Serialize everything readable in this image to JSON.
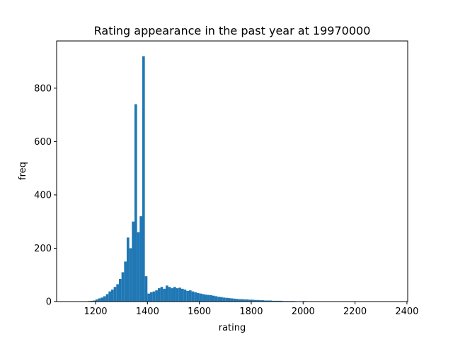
{
  "chart_data": {
    "type": "histogram",
    "title": "Rating appearance in the past year at 19970000",
    "xlabel": "rating",
    "ylabel": "freq",
    "color": "#1f77b4",
    "bins": [
      1110,
      1120,
      1130,
      1140,
      1150,
      1160,
      1170,
      1180,
      1190,
      1200,
      1210,
      1220,
      1230,
      1240,
      1250,
      1260,
      1270,
      1280,
      1290,
      1300,
      1310,
      1320,
      1330,
      1340,
      1350,
      1360,
      1370,
      1380,
      1390,
      1400,
      1410,
      1420,
      1430,
      1440,
      1450,
      1460,
      1470,
      1480,
      1490,
      1500,
      1510,
      1520,
      1530,
      1540,
      1550,
      1560,
      1570,
      1580,
      1590,
      1600,
      1610,
      1620,
      1630,
      1640,
      1650,
      1660,
      1670,
      1680,
      1690,
      1700,
      1710,
      1720,
      1730,
      1740,
      1750,
      1760,
      1770,
      1780,
      1790,
      1800,
      1810,
      1820,
      1830,
      1840,
      1850,
      1860,
      1870,
      1880,
      1890,
      1900,
      1910,
      1920,
      1930,
      1940,
      1950,
      1960,
      1970,
      1980,
      1990,
      2000,
      2010,
      2020,
      2030,
      2040,
      2050,
      2060,
      2070,
      2080,
      2090,
      2100,
      2110,
      2120,
      2130,
      2140,
      2150,
      2160,
      2170,
      2180,
      2190,
      2200,
      2210,
      2220,
      2230,
      2240,
      2250,
      2260,
      2270,
      2280,
      2290,
      2300,
      2310,
      2320,
      2330,
      2340,
      2350
    ],
    "values": [
      0,
      0,
      0,
      1,
      0,
      1,
      2,
      3,
      4,
      8,
      12,
      15,
      20,
      28,
      38,
      45,
      55,
      65,
      85,
      110,
      150,
      240,
      200,
      300,
      740,
      260,
      320,
      920,
      95,
      30,
      35,
      38,
      42,
      50,
      55,
      48,
      60,
      55,
      50,
      55,
      50,
      52,
      48,
      45,
      40,
      42,
      38,
      35,
      32,
      30,
      28,
      26,
      25,
      24,
      22,
      20,
      18,
      17,
      15,
      14,
      13,
      12,
      11,
      10,
      9,
      9,
      8,
      8,
      7,
      7,
      6,
      6,
      5,
      5,
      4,
      4,
      4,
      3,
      3,
      3,
      3,
      2,
      2,
      2,
      2,
      2,
      1,
      1,
      1,
      2,
      1,
      1,
      1,
      1,
      1,
      1,
      1,
      0,
      1,
      1,
      0,
      1,
      1,
      0,
      0,
      1,
      0,
      0,
      0,
      0,
      0,
      0,
      0,
      0,
      0,
      0,
      0,
      0,
      0,
      0,
      0,
      0,
      1,
      0
    ],
    "xlim": [
      1050,
      2403
    ],
    "ylim": [
      0,
      977
    ],
    "xticks": [
      1200,
      1400,
      1600,
      1800,
      2000,
      2200,
      2400
    ],
    "yticks": [
      0,
      200,
      400,
      600,
      800
    ]
  }
}
